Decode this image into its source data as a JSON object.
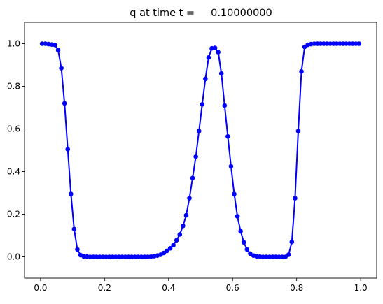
{
  "chart_data": {
    "type": "line",
    "title": "q at time t =     0.10000000",
    "xlabel": "",
    "ylabel": "",
    "xlim": [
      -0.05,
      1.05
    ],
    "ylim": [
      -0.1,
      1.1
    ],
    "xticks": [
      0.0,
      0.2,
      0.4,
      0.6,
      0.8,
      1.0
    ],
    "xtick_labels": [
      "0.0",
      "0.2",
      "0.4",
      "0.6",
      "0.8",
      "1.0"
    ],
    "yticks": [
      0.0,
      0.2,
      0.4,
      0.6,
      0.8,
      1.0
    ],
    "ytick_labels": [
      "0.0",
      "0.2",
      "0.4",
      "0.6",
      "0.8",
      "1.0"
    ],
    "grid": false,
    "line_color": "#0000ff",
    "marker": "filled-circle",
    "series": [
      {
        "x": [
          0.005,
          0.015,
          0.025,
          0.035,
          0.045,
          0.055,
          0.065,
          0.075,
          0.085,
          0.095,
          0.105,
          0.115,
          0.125,
          0.135,
          0.145,
          0.155,
          0.165,
          0.175,
          0.185,
          0.195,
          0.205,
          0.215,
          0.225,
          0.235,
          0.245,
          0.255,
          0.265,
          0.275,
          0.285,
          0.295,
          0.305,
          0.315,
          0.325,
          0.335,
          0.345,
          0.355,
          0.365,
          0.375,
          0.385,
          0.395,
          0.405,
          0.415,
          0.425,
          0.435,
          0.445,
          0.455,
          0.465,
          0.475,
          0.485,
          0.495,
          0.505,
          0.515,
          0.525,
          0.535,
          0.545,
          0.555,
          0.565,
          0.575,
          0.585,
          0.595,
          0.605,
          0.615,
          0.625,
          0.635,
          0.645,
          0.655,
          0.665,
          0.675,
          0.685,
          0.695,
          0.705,
          0.715,
          0.725,
          0.735,
          0.745,
          0.755,
          0.765,
          0.775,
          0.785,
          0.795,
          0.805,
          0.815,
          0.825,
          0.835,
          0.845,
          0.855,
          0.865,
          0.875,
          0.885,
          0.895,
          0.905,
          0.915,
          0.925,
          0.935,
          0.945,
          0.955,
          0.965,
          0.975,
          0.985,
          0.995
        ],
        "y": [
          1.0,
          1.0,
          0.998,
          0.996,
          0.994,
          0.97,
          0.885,
          0.72,
          0.505,
          0.295,
          0.13,
          0.035,
          0.008,
          0.002,
          0.001,
          0.0,
          0.0,
          0.0,
          0.0,
          0.0,
          0.0,
          0.0,
          0.0,
          0.0,
          0.0,
          0.0,
          0.0,
          0.0,
          0.0,
          0.0,
          0.0,
          0.0,
          0.0,
          0.0,
          0.001,
          0.003,
          0.006,
          0.01,
          0.018,
          0.028,
          0.04,
          0.055,
          0.078,
          0.105,
          0.145,
          0.195,
          0.275,
          0.37,
          0.47,
          0.59,
          0.715,
          0.835,
          0.935,
          0.978,
          0.98,
          0.96,
          0.86,
          0.71,
          0.565,
          0.425,
          0.295,
          0.19,
          0.12,
          0.068,
          0.035,
          0.015,
          0.006,
          0.002,
          0.001,
          0.0,
          0.0,
          0.0,
          0.0,
          0.0,
          0.0,
          0.0,
          0.0,
          0.01,
          0.07,
          0.275,
          0.59,
          0.87,
          0.985,
          0.995,
          0.998,
          1.0,
          1.0,
          1.0,
          1.0,
          1.0,
          1.0,
          1.0,
          1.0,
          1.0,
          1.0,
          1.0,
          1.0,
          1.0,
          1.0,
          1.0
        ]
      }
    ]
  }
}
